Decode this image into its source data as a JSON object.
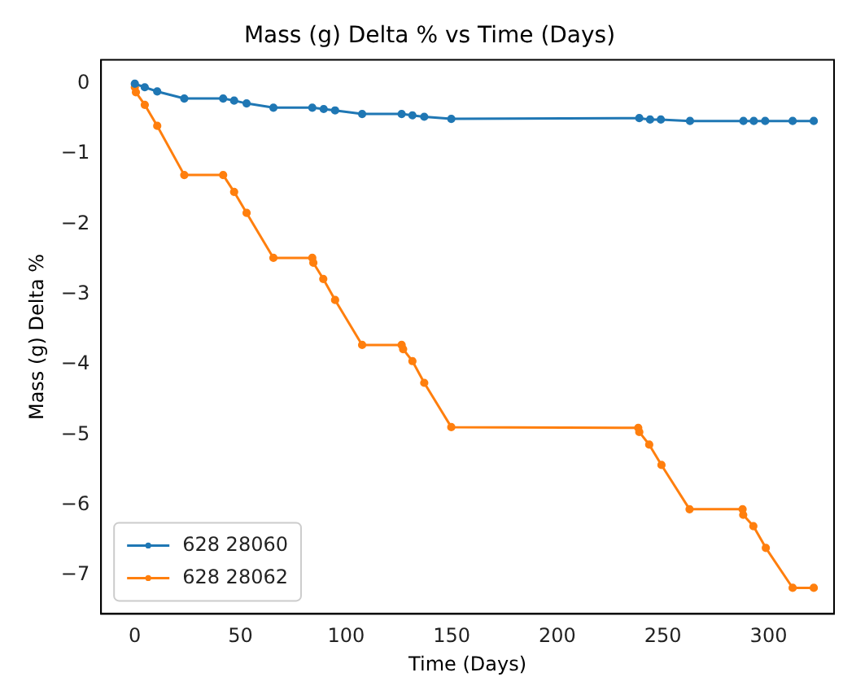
{
  "chart_data": {
    "type": "line",
    "title": "Mass (g) Delta % vs Time (Days)",
    "xlabel": "Time (Days)",
    "ylabel": "Mass (g) Delta %",
    "xlim": [
      -16,
      331
    ],
    "xticks": [
      0,
      50,
      100,
      150,
      200,
      250,
      300
    ],
    "ylim": [
      -7.55,
      0.34
    ],
    "yticks": [
      0,
      -1,
      -2,
      -3,
      -4,
      -5,
      -6,
      -7
    ],
    "marker": "circle",
    "line_style": "solid",
    "grid": false,
    "legend": "bottom left",
    "series": [
      {
        "name": "628 28060",
        "color": "#1f77b4",
        "x": [
          0,
          4.7,
          10.6,
          23.4,
          41.8,
          47,
          52.9,
          65.6,
          84,
          89.4,
          94.8,
          107.6,
          126.3,
          131.4,
          137,
          149.8,
          238.8,
          243.9,
          249,
          262.8,
          288.1,
          293,
          298.4,
          311.4,
          321.4
        ],
        "values": [
          0,
          -0.05,
          -0.11,
          -0.21,
          -0.21,
          -0.24,
          -0.28,
          -0.34,
          -0.34,
          -0.36,
          -0.38,
          -0.43,
          -0.43,
          -0.45,
          -0.47,
          -0.5,
          -0.49,
          -0.51,
          -0.51,
          -0.53,
          -0.53,
          -0.53,
          -0.53,
          -0.53,
          -0.53
        ]
      },
      {
        "name": "628 28062",
        "color": "#ff7f0e",
        "x": [
          0,
          0.5,
          4.7,
          10.6,
          23.4,
          41.8,
          47,
          52.9,
          65.6,
          84,
          84.5,
          89.2,
          94.8,
          107.6,
          126.3,
          127,
          131.4,
          137,
          149.8,
          238.3,
          238.8,
          243.5,
          249.3,
          262.6,
          287.7,
          288,
          292.8,
          298.7,
          311.4,
          321.4
        ],
        "values": [
          -0.05,
          -0.12,
          -0.3,
          -0.6,
          -1.3,
          -1.3,
          -1.54,
          -1.84,
          -2.48,
          -2.48,
          -2.55,
          -2.78,
          -3.08,
          -3.72,
          -3.72,
          -3.78,
          -3.95,
          -4.26,
          -4.89,
          -4.9,
          -4.96,
          -5.14,
          -5.43,
          -6.06,
          -6.06,
          -6.14,
          -6.3,
          -6.61,
          -7.18,
          -7.18
        ]
      }
    ]
  }
}
